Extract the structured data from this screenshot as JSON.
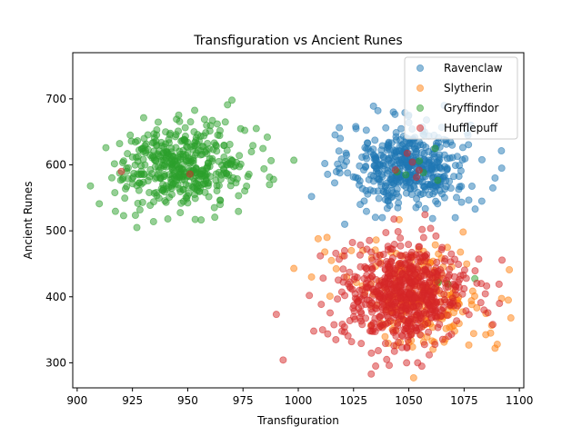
{
  "chart_data": {
    "type": "scatter",
    "title": "Transfiguration vs Ancient Runes",
    "xlabel": "Transfiguration",
    "ylabel": "Ancient Runes",
    "xlim": [
      898,
      1102
    ],
    "ylim": [
      262,
      770
    ],
    "xticks": [
      900,
      925,
      950,
      975,
      1000,
      1025,
      1050,
      1075,
      1100
    ],
    "yticks": [
      300,
      400,
      500,
      600,
      700
    ],
    "grid": false,
    "legend_position": "top-right",
    "marker_alpha": 0.5,
    "series": [
      {
        "name": "Ravenclaw",
        "color": "#1f77b4",
        "clusters": [
          {
            "center": [
              1050,
              598
            ],
            "spread": [
              13,
              30
            ],
            "count": 440
          }
        ],
        "x": [
          1006,
          1012,
          1019,
          1021,
          1026,
          1034,
          1038,
          1043,
          1045,
          1058,
          1063,
          1071,
          1078,
          1083,
          1089,
          1092,
          1088,
          1080,
          1066,
          1028
        ],
        "y": [
          552,
          602,
          640,
          510,
          658,
          689,
          520,
          680,
          535,
          668,
          541,
          520,
          660,
          545,
          580,
          595,
          565,
          533,
          690,
          540
        ]
      },
      {
        "name": "Slytherin",
        "color": "#ff7f0e",
        "clusters": [
          {
            "center": [
              1055,
              402
            ],
            "spread": [
              14,
              38
            ],
            "count": 230
          }
        ],
        "x": [
          998,
          1006,
          1009,
          1012,
          1013,
          1015,
          1020,
          1024,
          1087,
          1090,
          1095,
          1089
        ],
        "y": [
          443,
          430,
          488,
          468,
          490,
          455,
          462,
          470,
          345,
          328,
          395,
          322
        ]
      },
      {
        "name": "Gryffindor",
        "color": "#2ca02c",
        "clusters": [
          {
            "center": [
              948,
              598
            ],
            "spread": [
              14,
              30
            ],
            "count": 430
          },
          {
            "center": [
              1058,
              594
            ],
            "spread": [
              6,
              18
            ],
            "count": 6
          },
          {
            "center": [
              1068,
              420
            ],
            "spread": [
              6,
              20
            ],
            "count": 3
          }
        ],
        "x": [
          906,
          910,
          913,
          921,
          924,
          927,
          936,
          941,
          970,
          968,
          981,
          987,
          986,
          998,
          967
        ],
        "y": [
          568,
          541,
          626,
          523,
          645,
          505,
          653,
          518,
          698,
          691,
          655,
          570,
          642,
          607,
          665
        ]
      },
      {
        "name": "Hufflepuff",
        "color": "#d62728",
        "clusters": [
          {
            "center": [
              1048,
              405
            ],
            "spread": [
              14,
              36
            ],
            "count": 640
          },
          {
            "center": [
              1052,
              600
            ],
            "spread": [
              6,
              20
            ],
            "count": 5
          }
        ],
        "x": [
          920,
          951,
          1005,
          1007,
          1011,
          1017,
          1033,
          1035,
          1040,
          1049,
          1054,
          1056,
          1076,
          1084,
          1088,
          1091
        ],
        "y": [
          590,
          586,
          402,
          348,
          350,
          335,
          283,
          295,
          305,
          300,
          300,
          502,
          428,
          380,
          358,
          390
        ]
      }
    ]
  }
}
